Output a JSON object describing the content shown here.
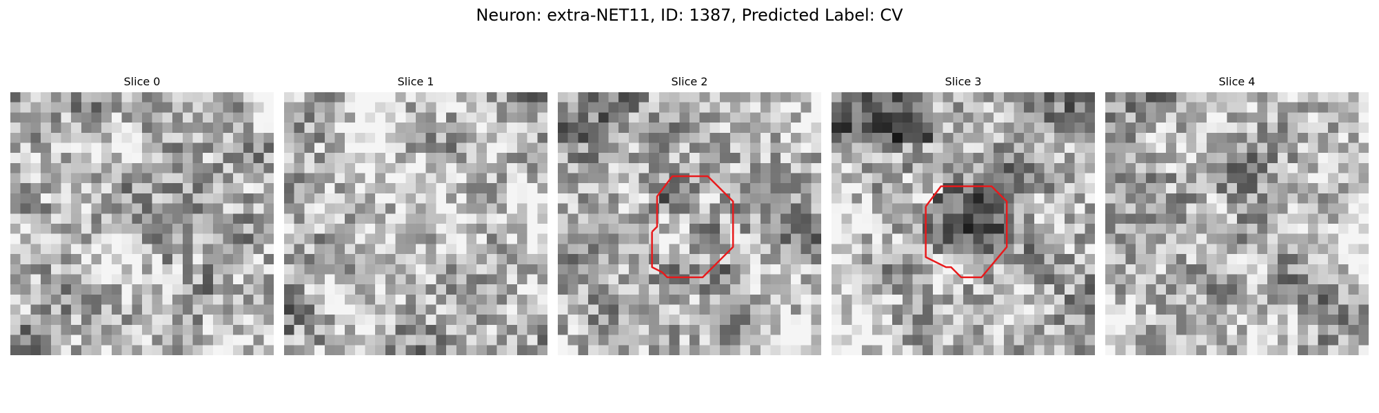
{
  "title": "Neuron: extra-NET11, ID: 1387, Predicted Label: CV",
  "grid_size": 26,
  "outline_color": "#e8191b",
  "slices": [
    {
      "label": "Slice 0",
      "seed": 11,
      "outline": null
    },
    {
      "label": "Slice 1",
      "seed": 23,
      "outline": null
    },
    {
      "label": "Slice 2",
      "seed": 37,
      "outline": [
        [
          9.3,
          13.8
        ],
        [
          9.8,
          13.3
        ],
        [
          9.8,
          10.3
        ],
        [
          11.3,
          8.3
        ],
        [
          14.8,
          8.3
        ],
        [
          15.8,
          9.3
        ],
        [
          17.3,
          10.8
        ],
        [
          17.3,
          15.3
        ],
        [
          14.3,
          18.3
        ],
        [
          10.8,
          18.3
        ],
        [
          10.3,
          17.8
        ],
        [
          9.3,
          17.3
        ],
        [
          9.3,
          13.8
        ]
      ]
    },
    {
      "label": "Slice 3",
      "seed": 53,
      "outline": [
        [
          9.3,
          11.3
        ],
        [
          10.8,
          9.3
        ],
        [
          15.8,
          9.3
        ],
        [
          16.8,
          10.3
        ],
        [
          17.3,
          10.8
        ],
        [
          17.3,
          15.3
        ],
        [
          14.8,
          18.3
        ],
        [
          12.8,
          18.3
        ],
        [
          11.8,
          17.3
        ],
        [
          11.3,
          17.3
        ],
        [
          9.3,
          16.3
        ],
        [
          9.3,
          11.3
        ]
      ]
    },
    {
      "label": "Slice 4",
      "seed": 71,
      "outline": null
    }
  ]
}
